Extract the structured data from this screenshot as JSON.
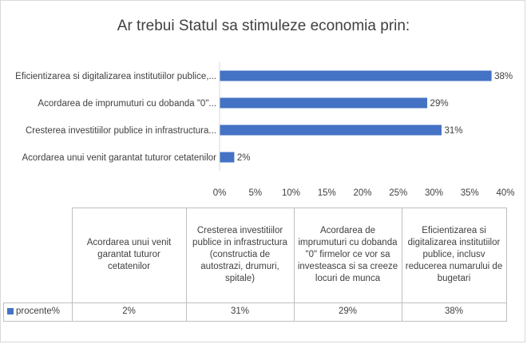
{
  "chart_data": {
    "type": "bar",
    "orientation": "horizontal",
    "title": "Ar trebui Statul sa stimuleze economia prin:",
    "categories_axis": [
      "Eficientizarea si digitalizarea institutiilor publice,...",
      "Acordarea de imprumuturi cu dobanda \"0\"...",
      "Cresterea investitiilor publice in infrastructura...",
      "Acordarea unui venit garantat tuturor cetatenilor"
    ],
    "values": [
      38,
      29,
      31,
      2
    ],
    "data_labels": [
      "38%",
      "29%",
      "31%",
      "2%"
    ],
    "xlim": [
      0,
      40
    ],
    "x_ticks": [
      "0%",
      "5%",
      "10%",
      "15%",
      "20%",
      "25%",
      "30%",
      "35%",
      "40%"
    ],
    "grid": false,
    "bar_color": "#4472c4",
    "data_table": {
      "columns": [
        "Acordarea unui venit garantat tuturor cetatenilor",
        "Cresterea investitiilor publice in infrastructura (constructia de autostrazi, drumuri, spitale)",
        "Acordarea de imprumuturi cu dobanda \"0\" firmelor ce vor sa investeasca si sa creeze locuri de munca",
        "Eficientizarea si digitalizarea institutiilor publice, inclusv reducerea numarului de bugetari"
      ],
      "series_name": "procente%",
      "values": [
        "2%",
        "31%",
        "29%",
        "38%"
      ]
    }
  }
}
